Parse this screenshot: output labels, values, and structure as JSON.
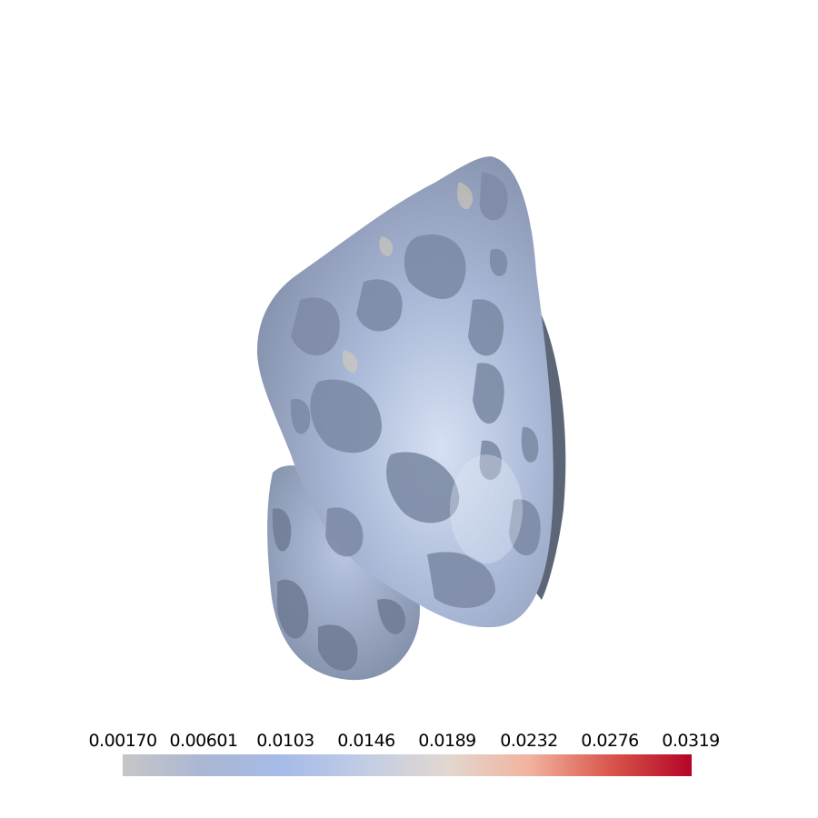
{
  "scene": {
    "background": "#ffffff",
    "surface_base_color": "#a9b8d6",
    "surface_dark_color": "#7f8ca6",
    "surface_highlight_color": "#dbe4f5"
  },
  "colorbar": {
    "ticks": [
      "0.00170",
      "0.00601",
      "0.0103",
      "0.0146",
      "0.0189",
      "0.0232",
      "0.0276",
      "0.0319"
    ],
    "colors": [
      "#c6c6c6",
      "#aab7d3",
      "#a6bbe9",
      "#c2cde4",
      "#e2d7cf",
      "#f2b39f",
      "#d9574c",
      "#b40426"
    ]
  }
}
